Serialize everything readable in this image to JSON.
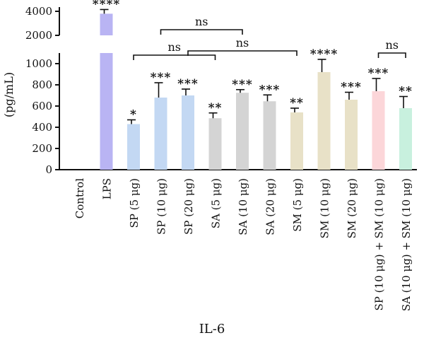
{
  "chart_data": {
    "type": "bar",
    "title": "",
    "xlabel": "IL-6",
    "ylabel": "(pg/mL)",
    "ylim_lower": [
      0,
      1100
    ],
    "ylim_upper": [
      2000,
      4000
    ],
    "yticks_lower": [
      "0",
      "200",
      "400",
      "600",
      "800",
      "1000"
    ],
    "yticks_upper": [
      "2000",
      "4000"
    ],
    "categories": [
      "Control",
      "LPS",
      "SP (5 μg)",
      "SP (10 μg)",
      "SP (20 μg)",
      "SA (5 μg)",
      "SA (10 μg)",
      "SA (20 μg)",
      "SM (5 μg)",
      "SM (10 μg)",
      "SM (20 μg)",
      "SP (10 μg) + SM (10 μg)",
      "SA (10 μg) + SM (10 μg)"
    ],
    "values": [
      0,
      3800,
      430,
      680,
      700,
      485,
      725,
      645,
      540,
      920,
      660,
      740,
      580
    ],
    "errors": [
      0,
      350,
      40,
      140,
      60,
      50,
      30,
      60,
      40,
      120,
      70,
      120,
      110
    ],
    "significance": [
      "",
      "****",
      "*",
      "***",
      "***",
      "**",
      "***",
      "***",
      "**",
      "****",
      "***",
      "***",
      "**"
    ],
    "colors": [
      "#ffffff",
      "#b9b4f3",
      "#c3d8f3",
      "#c3d8f3",
      "#c3d8f3",
      "#d4d4d4",
      "#d4d4d4",
      "#d4d4d4",
      "#e8e1c7",
      "#e8e1c7",
      "#e8e1c7",
      "#fcd6d9",
      "#c8f0de"
    ],
    "comparisons": [
      {
        "from": 3,
        "to": 6,
        "label": "ns"
      },
      {
        "from": 2,
        "to": 5,
        "label": "ns"
      },
      {
        "from": 4,
        "to": 8,
        "label": "ns"
      },
      {
        "from": 11,
        "to": 12,
        "label": "ns"
      }
    ],
    "grid": false,
    "axis_break": true
  }
}
